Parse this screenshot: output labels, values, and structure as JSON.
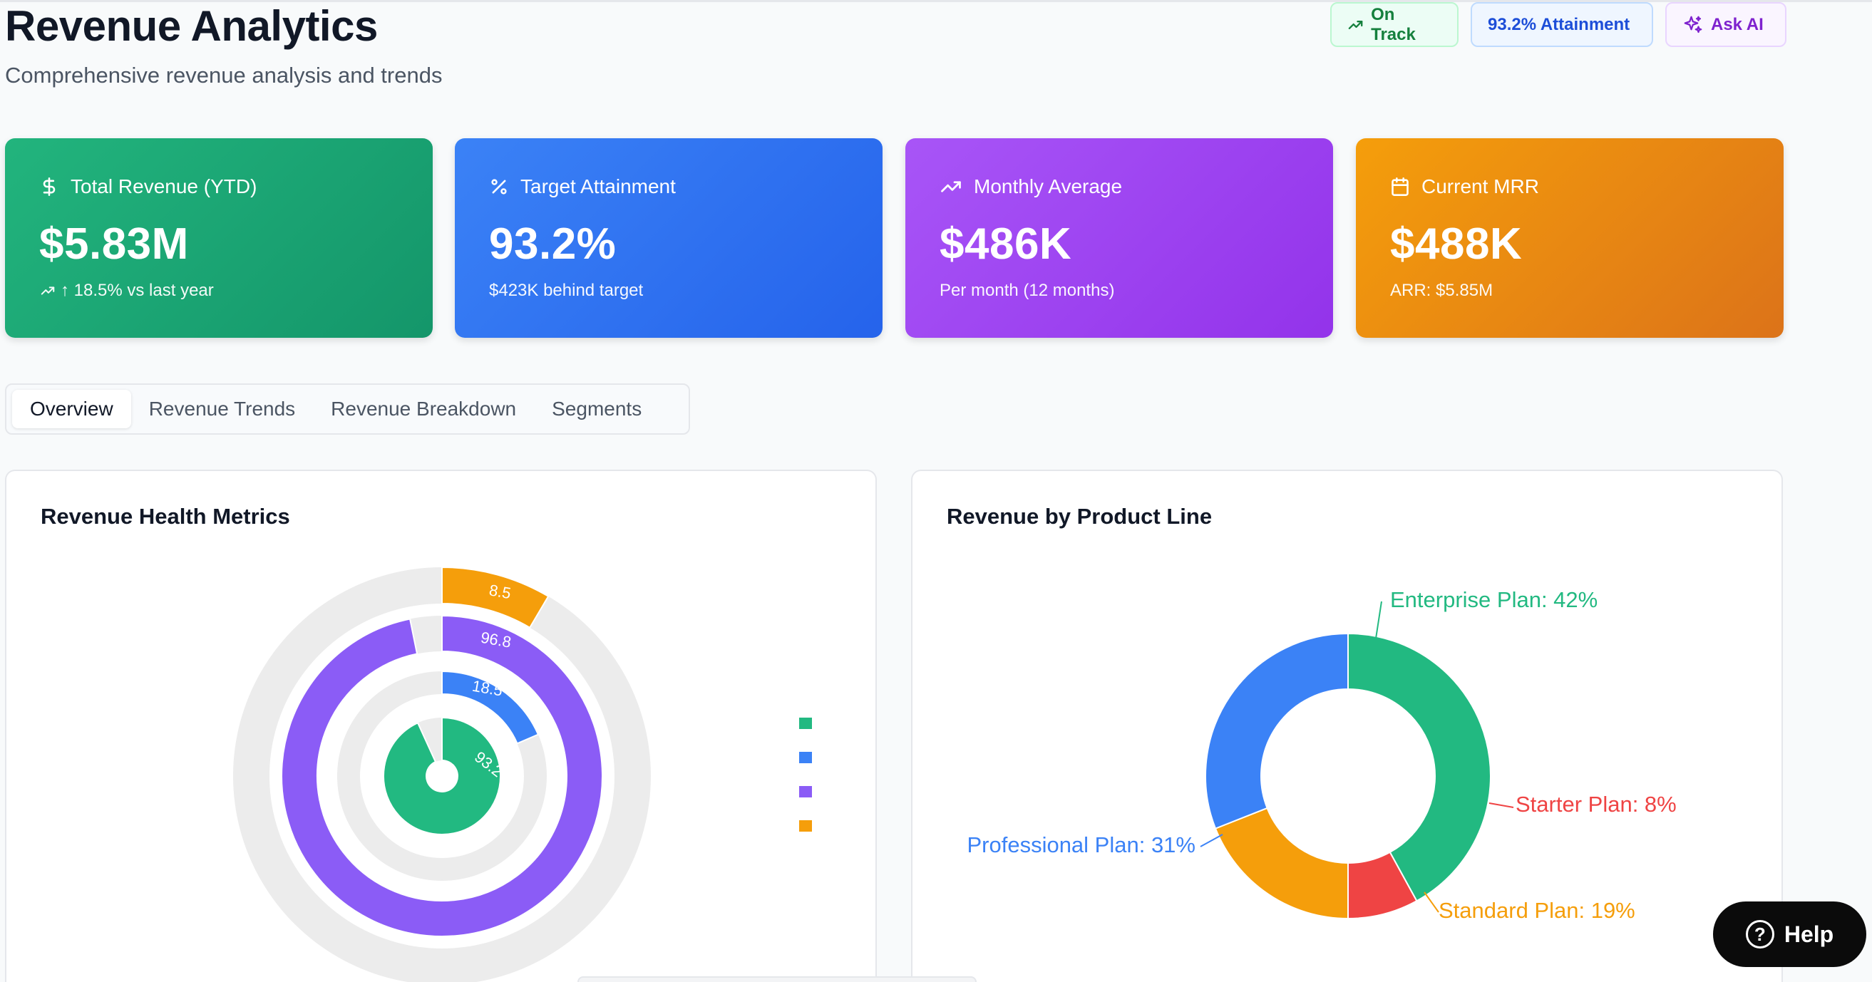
{
  "header": {
    "title": "Revenue Analytics",
    "subtitle": "Comprehensive revenue analysis and trends"
  },
  "badges": {
    "status": "On Track",
    "attainment": "93.2% Attainment",
    "ask_ai": "Ask AI"
  },
  "kpis": [
    {
      "label": "Total Revenue (YTD)",
      "value": "$5.83M",
      "sub": "↑ 18.5% vs last year",
      "icon": "dollar-icon",
      "color": "#1fa874"
    },
    {
      "label": "Target Attainment",
      "value": "93.2%",
      "sub": "$423K behind target",
      "icon": "percent-icon",
      "color": "#3178f0"
    },
    {
      "label": "Monthly Average",
      "value": "$486K",
      "sub": "Per month (12 months)",
      "icon": "trending-up-icon",
      "color": "#9f4ef3"
    },
    {
      "label": "Current MRR",
      "value": "$488K",
      "sub": "ARR: $5.85M",
      "icon": "calendar-icon",
      "color": "#e8871a"
    }
  ],
  "tabs": [
    "Overview",
    "Revenue Trends",
    "Revenue Breakdown",
    "Segments"
  ],
  "active_tab": "Overview",
  "cards": {
    "left_title": "Revenue Health Metrics",
    "right_title": "Revenue by Product Line"
  },
  "help": {
    "label": "Help"
  },
  "chart_data": [
    {
      "type": "pie",
      "subtype": "radial-bar",
      "title": "Revenue Health Metrics",
      "series": [
        {
          "values": [
            93.2
          ],
          "color": "#22b981"
        },
        {
          "values": [
            18.5
          ],
          "color": "#3b82f6"
        },
        {
          "values": [
            96.8
          ],
          "color": "#8b5cf6"
        },
        {
          "values": [
            8.5
          ],
          "color": "#f59e0b"
        }
      ],
      "max": 100,
      "legend": "right"
    },
    {
      "type": "pie",
      "subtype": "donut",
      "title": "Revenue by Product Line",
      "categories": [
        "Enterprise Plan",
        "Starter Plan",
        "Standard Plan",
        "Professional Plan"
      ],
      "values": [
        42,
        8,
        19,
        31
      ],
      "labels": [
        "Enterprise Plan: 42%",
        "Starter Plan: 8%",
        "Standard Plan: 19%",
        "Professional Plan: 31%"
      ],
      "colors": [
        "#22b981",
        "#ef4444",
        "#f59e0b",
        "#3b82f6"
      ]
    }
  ]
}
